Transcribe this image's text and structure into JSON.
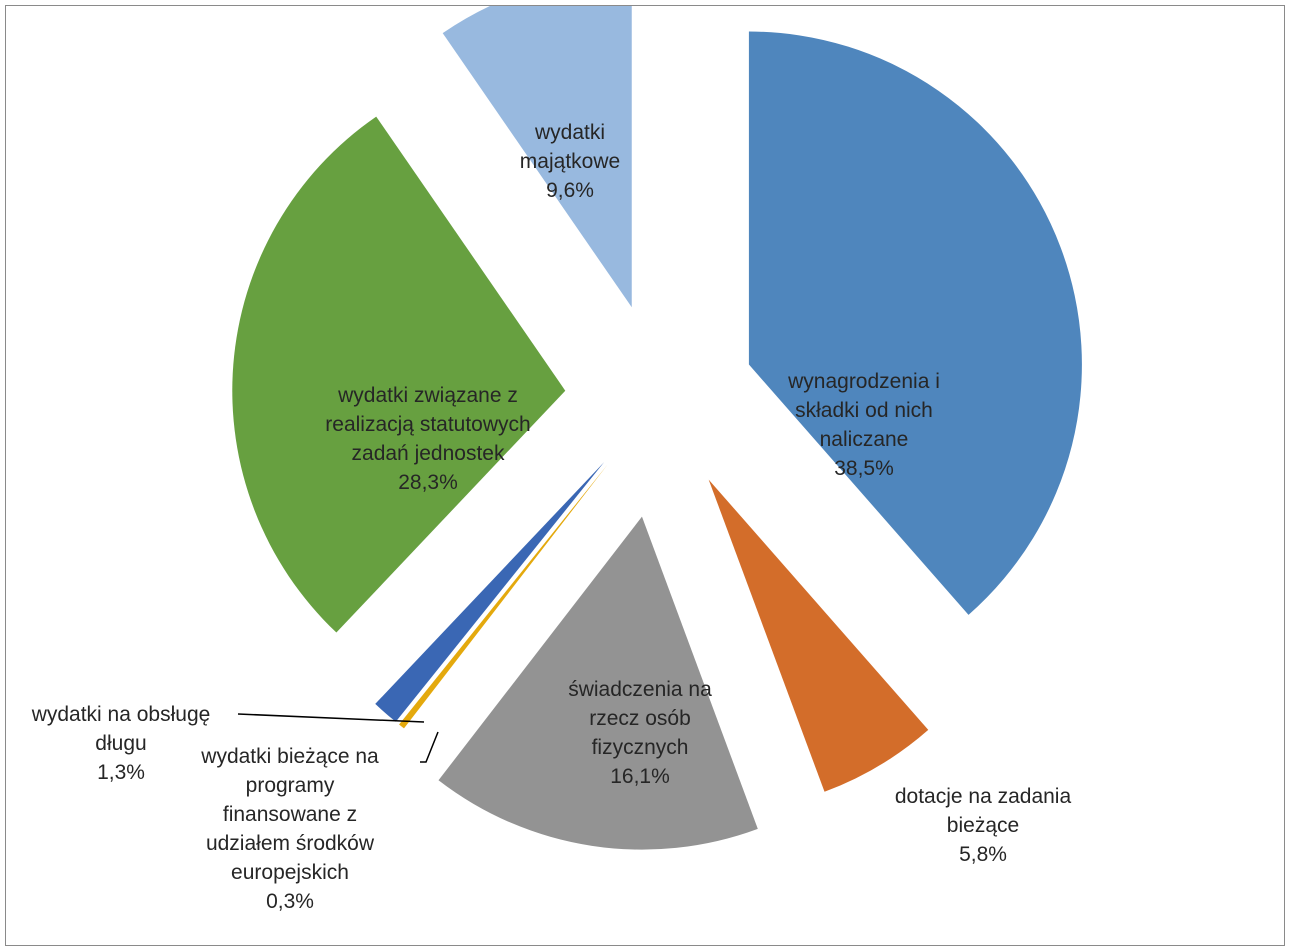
{
  "chart_data": {
    "type": "pie",
    "title": "",
    "exploded": true,
    "legend": "none",
    "slices": [
      {
        "label": "wynagrodzenia i składki od nich naliczane",
        "label_lines": [
          "wynagrodzenia i",
          "składki od nich",
          "naliczane"
        ],
        "value": 38.5,
        "value_label": "38,5%",
        "color": "#4f86bd"
      },
      {
        "label": "dotacje na zadania bieżące",
        "label_lines": [
          "dotacje na zadania",
          "bieżące"
        ],
        "value": 5.8,
        "value_label": "5,8%",
        "color": "#d36d2a"
      },
      {
        "label": "świadczenia na rzecz osób fizycznych",
        "label_lines": [
          "świadczenia na",
          "rzecz osób",
          "fizycznych"
        ],
        "value": 16.1,
        "value_label": "16,1%",
        "color": "#939393"
      },
      {
        "label": "wydatki bieżące na programy finansowane z udziałem środków europejskich",
        "label_lines": [
          "wydatki bieżące na",
          "programy",
          "finansowane z",
          "udziałem środków",
          "europejskich"
        ],
        "value": 0.3,
        "value_label": "0,3%",
        "color": "#e4a90d"
      },
      {
        "label": "wydatki na obsługę długu",
        "label_lines": [
          "wydatki na obsługę",
          "długu"
        ],
        "value": 1.3,
        "value_label": "1,3%",
        "color": "#3a67b4"
      },
      {
        "label": "wydatki związane z realizacją statutowych zadań jednostek",
        "label_lines": [
          "wydatki związane z",
          "realizacją statutowych",
          "zadań jednostek"
        ],
        "value": 28.3,
        "value_label": "28,3%",
        "color": "#67a040"
      },
      {
        "label": "wydatki majątkowe",
        "label_lines": [
          "wydatki",
          "majątkowe"
        ],
        "value": 9.6,
        "value_label": "9,6%",
        "color": "#98b9df"
      }
    ]
  }
}
